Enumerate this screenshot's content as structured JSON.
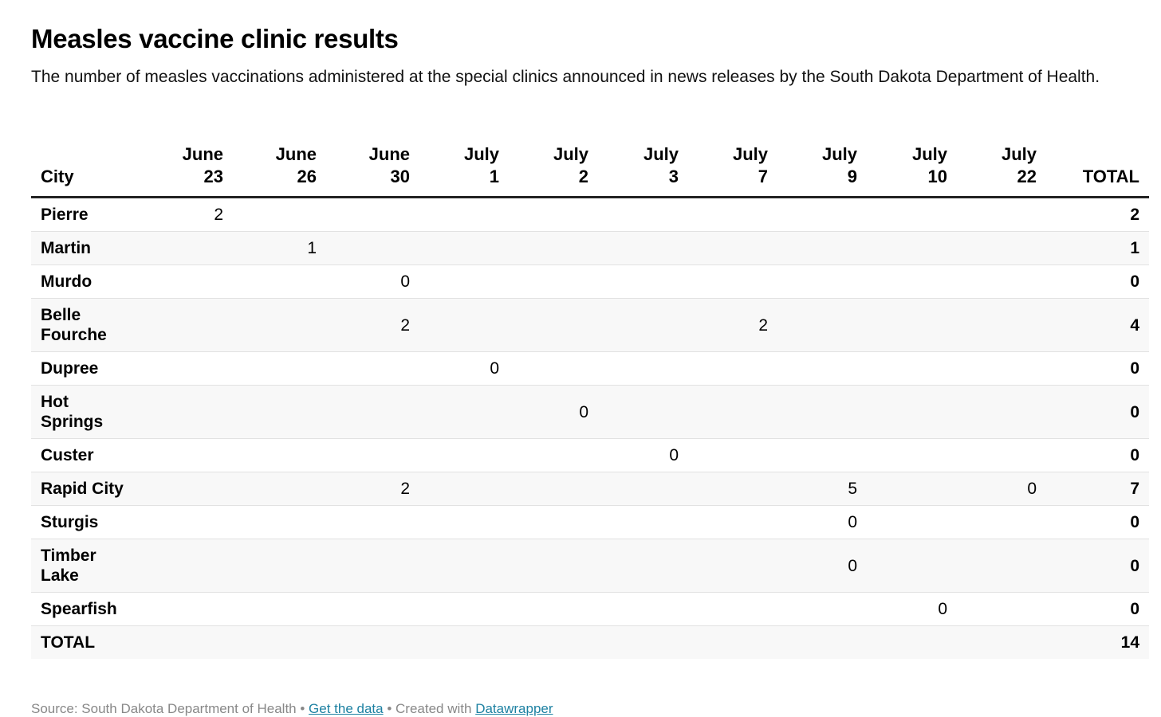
{
  "header": {
    "title": "Measles vaccine clinic results",
    "subtitle": "The number of measles vaccinations administered at the special clinics announced in news releases by the South Dakota Department of Health."
  },
  "chart_data": {
    "type": "table",
    "city_header": "City",
    "columns": [
      {
        "top": "June",
        "bottom": "23"
      },
      {
        "top": "June",
        "bottom": "26"
      },
      {
        "top": "June",
        "bottom": "30"
      },
      {
        "top": "July",
        "bottom": "1"
      },
      {
        "top": "July",
        "bottom": "2"
      },
      {
        "top": "July",
        "bottom": "3"
      },
      {
        "top": "July",
        "bottom": "7"
      },
      {
        "top": "July",
        "bottom": "9"
      },
      {
        "top": "July",
        "bottom": "10"
      },
      {
        "top": "July",
        "bottom": "22"
      }
    ],
    "total_header": "TOTAL",
    "rows": [
      {
        "city": "Pierre",
        "values": [
          "2",
          "",
          "",
          "",
          "",
          "",
          "",
          "",
          "",
          ""
        ],
        "total": "2"
      },
      {
        "city": "Martin",
        "values": [
          "",
          "1",
          "",
          "",
          "",
          "",
          "",
          "",
          "",
          ""
        ],
        "total": "1"
      },
      {
        "city": "Murdo",
        "values": [
          "",
          "",
          "0",
          "",
          "",
          "",
          "",
          "",
          "",
          ""
        ],
        "total": "0"
      },
      {
        "city": "Belle Fourche",
        "values": [
          "",
          "",
          "2",
          "",
          "",
          "",
          "2",
          "",
          "",
          ""
        ],
        "total": "4"
      },
      {
        "city": "Dupree",
        "values": [
          "",
          "",
          "",
          "0",
          "",
          "",
          "",
          "",
          "",
          ""
        ],
        "total": "0"
      },
      {
        "city": "Hot Springs",
        "values": [
          "",
          "",
          "",
          "",
          "0",
          "",
          "",
          "",
          "",
          ""
        ],
        "total": "0"
      },
      {
        "city": "Custer",
        "values": [
          "",
          "",
          "",
          "",
          "",
          "0",
          "",
          "",
          "",
          ""
        ],
        "total": "0"
      },
      {
        "city": "Rapid City",
        "values": [
          "",
          "",
          "2",
          "",
          "",
          "",
          "",
          "5",
          "",
          "0"
        ],
        "total": "7"
      },
      {
        "city": "Sturgis",
        "values": [
          "",
          "",
          "",
          "",
          "",
          "",
          "",
          "0",
          "",
          ""
        ],
        "total": "0"
      },
      {
        "city": "Timber Lake",
        "values": [
          "",
          "",
          "",
          "",
          "",
          "",
          "",
          "0",
          "",
          ""
        ],
        "total": "0"
      },
      {
        "city": "Spearfish",
        "values": [
          "",
          "",
          "",
          "",
          "",
          "",
          "",
          "",
          "0",
          ""
        ],
        "total": "0"
      },
      {
        "city": "TOTAL",
        "values": [
          "",
          "",
          "",
          "",
          "",
          "",
          "",
          "",
          "",
          ""
        ],
        "total": "14"
      }
    ]
  },
  "footer": {
    "source": "Source: South Dakota Department of Health",
    "sep1": " • ",
    "get_data": "Get the data",
    "sep2": " • Created with ",
    "created_with": "Datawrapper"
  }
}
